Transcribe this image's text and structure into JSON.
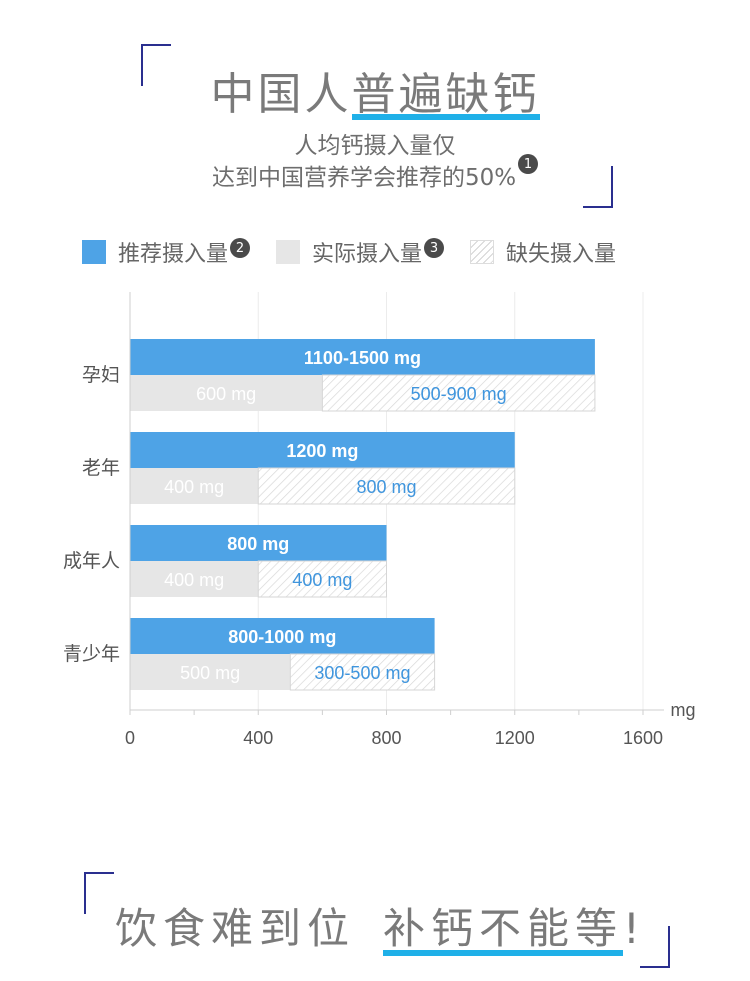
{
  "header": {
    "title_plain": "中国人",
    "title_emph": "普遍缺钙",
    "subtitle_line1": "人均钙摄入量仅",
    "subtitle_line2": "达到中国营养学会推荐的50%",
    "subtitle_badge": "1"
  },
  "legend": [
    {
      "label": "推荐摄入量",
      "badge": "2",
      "swatch": "blue"
    },
    {
      "label": "实际摄入量",
      "badge": "3",
      "swatch": "gray"
    },
    {
      "label": "缺失摄入量",
      "badge": "",
      "swatch": "hatch"
    }
  ],
  "chart_data": {
    "type": "bar",
    "orientation": "horizontal",
    "categories": [
      "孕妇",
      "老年",
      "成年人",
      "青少年"
    ],
    "series": [
      {
        "name": "推荐摄入量",
        "values": [
          1450,
          1200,
          800,
          950
        ],
        "labels": [
          "1100-1500 mg",
          "1200 mg",
          "800 mg",
          "800-1000 mg"
        ],
        "color": "#4ea3e6"
      },
      {
        "name": "实际摄入量",
        "values": [
          600,
          400,
          400,
          500
        ],
        "labels": [
          "600 mg",
          "400 mg",
          "400 mg",
          "500 mg"
        ],
        "color": "#e6e6e6"
      },
      {
        "name": "缺失摄入量",
        "values": [
          850,
          800,
          400,
          450
        ],
        "labels": [
          "500-900 mg",
          "800 mg",
          "400 mg",
          "300-500 mg"
        ],
        "color": "hatch"
      }
    ],
    "xlim": [
      0,
      1600
    ],
    "xticks": [
      0,
      400,
      800,
      1200,
      1600
    ],
    "xlabel": "mg",
    "grid": true
  },
  "footer": {
    "text_plain": "饮食难到位",
    "text_emph": "补钙不能等",
    "text_end": "!"
  },
  "colors": {
    "accent": "#1fb0e8",
    "bar_blue": "#4ea3e6",
    "corner": "#2a2f8f"
  }
}
